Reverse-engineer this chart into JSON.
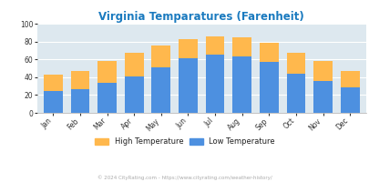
{
  "title": "Virginia Temparatures (Farenheit)",
  "months": [
    "Jan",
    "Feb",
    "Mar",
    "Apr",
    "May",
    "Jun",
    "Jul",
    "Aug",
    "Sep",
    "Oct",
    "Nov",
    "Dec"
  ],
  "low_temps": [
    25,
    27,
    34,
    41,
    51,
    61,
    65,
    63,
    57,
    44,
    36,
    29
  ],
  "high_temps": [
    43,
    47,
    58,
    67,
    76,
    83,
    86,
    85,
    79,
    67,
    58,
    47
  ],
  "low_color": "#4d90e0",
  "high_color": "#ffb84d",
  "title_color": "#1a7abf",
  "plot_bg": "#dde8ef",
  "ylim": [
    0,
    100
  ],
  "yticks": [
    0,
    20,
    40,
    60,
    80,
    100
  ],
  "legend_high": "High Temperature",
  "legend_low": "Low Temperature",
  "footnote": "© 2024 CityRating.com - https://www.cityrating.com/weather-history/"
}
